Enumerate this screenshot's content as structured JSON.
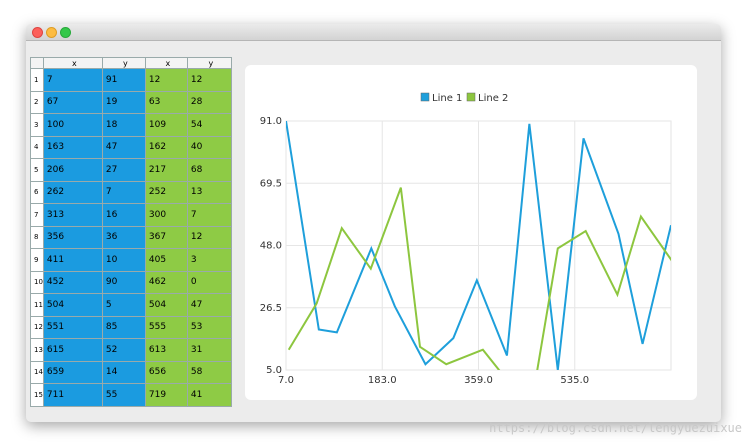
{
  "table": {
    "columns": [
      "x",
      "y",
      "x",
      "y"
    ],
    "row_numbers": [
      1,
      2,
      3,
      4,
      5,
      6,
      7,
      8,
      9,
      10,
      11,
      12,
      13,
      14,
      15
    ]
  },
  "chart_data": {
    "type": "line",
    "series": [
      {
        "name": "Line 1",
        "color": "#1e9fdb",
        "cell_color": "#1b9be0",
        "x": [
          7,
          67,
          100,
          163,
          206,
          262,
          313,
          356,
          411,
          452,
          504,
          551,
          615,
          659,
          711
        ],
        "values": [
          91,
          19,
          18,
          47,
          27,
          7,
          16,
          36,
          10,
          90,
          5,
          85,
          52,
          14,
          55
        ]
      },
      {
        "name": "Line 2",
        "color": "#8dc63f",
        "cell_color": "#8ecb45",
        "x": [
          12,
          63,
          109,
          162,
          217,
          252,
          300,
          367,
          405,
          462,
          504,
          555,
          613,
          656,
          719
        ],
        "values": [
          12,
          28,
          54,
          40,
          68,
          13,
          7,
          12,
          3,
          0,
          47,
          53,
          31,
          58,
          41
        ]
      }
    ],
    "xlim": [
      7,
      711
    ],
    "xticks": [
      {
        "value": 7,
        "label": "7.0"
      },
      {
        "value": 183,
        "label": "183.0"
      },
      {
        "value": 359,
        "label": "359.0"
      },
      {
        "value": 535,
        "label": "535.0"
      }
    ],
    "ylim": [
      5,
      91
    ],
    "yticks": [
      {
        "value": 5,
        "label": "5.0"
      },
      {
        "value": 26.5,
        "label": "26.5"
      },
      {
        "value": 48,
        "label": "48.0"
      },
      {
        "value": 69.5,
        "label": "69.5"
      },
      {
        "value": 91,
        "label": "91.0"
      }
    ],
    "grid": true
  },
  "watermark": "https://blog.csdn.net/lengyuezuixue"
}
